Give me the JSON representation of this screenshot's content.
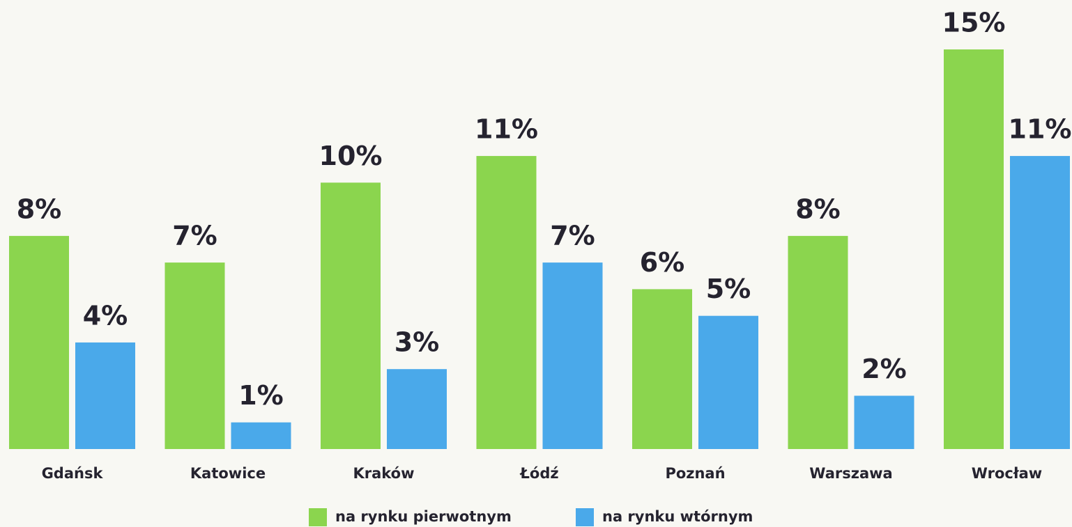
{
  "chart_data": {
    "type": "bar",
    "categories": [
      "Gdańsk",
      "Katowice",
      "Kraków",
      "Łódź",
      "Poznań",
      "Warszawa",
      "Wrocław"
    ],
    "series": [
      {
        "name": "na rynku pierwotnym",
        "color": "#8bd54e",
        "values": [
          8,
          7,
          10,
          11,
          6,
          8,
          15
        ],
        "value_labels": [
          "8%",
          "7%",
          "10%",
          "11%",
          "6%",
          "8%",
          "15%"
        ]
      },
      {
        "name": "na rynku wtórnym",
        "color": "#4aa9ea",
        "values": [
          4,
          1,
          3,
          7,
          5,
          2,
          11
        ],
        "value_labels": [
          "4%",
          "1%",
          "3%",
          "7%",
          "5%",
          "2%",
          "11%"
        ]
      }
    ],
    "ylim": [
      0,
      15
    ]
  }
}
